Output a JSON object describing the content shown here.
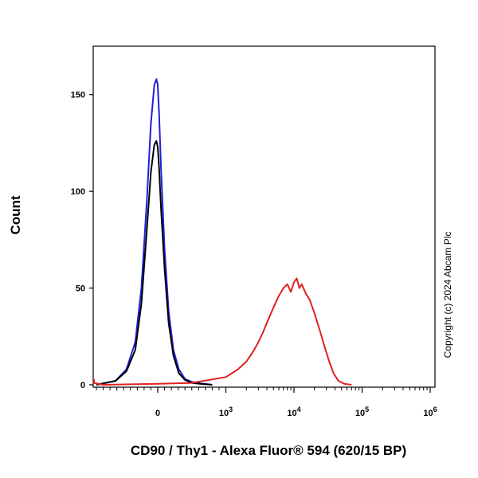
{
  "chart_data": {
    "type": "line",
    "xlabel": "CD90 / Thy1 - Alexa Fluor® 594 (620/15 BP)",
    "ylabel": "Count",
    "copyright": "Copyright (c) 2024 Abcam Plc",
    "x_scale": "biexponential",
    "ylim": [
      0,
      175
    ],
    "grid": false,
    "y_ticks": [
      {
        "value": 0,
        "label": "0"
      },
      {
        "value": 50,
        "label": "50"
      },
      {
        "value": 100,
        "label": "100"
      },
      {
        "value": 150,
        "label": "150"
      }
    ],
    "x_ticks": [
      {
        "value": 0,
        "label": "0"
      },
      {
        "value": 1000,
        "label": "10",
        "exp": "3"
      },
      {
        "value": 10000,
        "label": "10",
        "exp": "4"
      },
      {
        "value": 100000,
        "label": "10",
        "exp": "5"
      },
      {
        "value": 1000000,
        "label": "10",
        "exp": "6"
      }
    ],
    "series": [
      {
        "color": "#1f1fdd",
        "x": [
          -900,
          -620,
          -460,
          -330,
          -240,
          -160,
          -100,
          -50,
          -20,
          0,
          20,
          50,
          100,
          160,
          230,
          310,
          400,
          500,
          620,
          800
        ],
        "y": [
          0,
          2,
          8,
          22,
          50,
          95,
          135,
          155,
          158,
          155,
          140,
          110,
          70,
          38,
          18,
          8,
          3,
          1.5,
          0.8,
          0
        ]
      },
      {
        "color": "#000000",
        "x": [
          -900,
          -620,
          -460,
          -330,
          -240,
          -160,
          -100,
          -50,
          -20,
          0,
          20,
          50,
          100,
          160,
          230,
          310,
          400,
          500,
          620,
          800
        ],
        "y": [
          0,
          2,
          7,
          18,
          42,
          80,
          110,
          124,
          126,
          123,
          112,
          90,
          60,
          32,
          15,
          6,
          2.5,
          1,
          0.5,
          0
        ]
      },
      {
        "color": "#e02020",
        "x": [
          -2500,
          -1500,
          -800,
          0,
          500,
          1000,
          1500,
          2000,
          2500,
          3000,
          3500,
          4000,
          5000,
          6000,
          7000,
          8000,
          9000,
          10000,
          11000,
          12000,
          13000,
          15000,
          17000,
          20000,
          24000,
          28000,
          33000,
          38000,
          45000,
          55000,
          70000
        ],
        "y": [
          3,
          1,
          0,
          0.5,
          1,
          4,
          8,
          12,
          17,
          22,
          27,
          32,
          40,
          46,
          50,
          52,
          48,
          53,
          55,
          50,
          52,
          47,
          44,
          37,
          28,
          20,
          12,
          6,
          2,
          0.5,
          0
        ]
      }
    ]
  }
}
